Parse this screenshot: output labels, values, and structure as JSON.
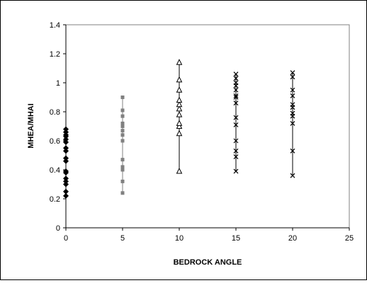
{
  "chart_data": {
    "type": "scatter",
    "xlabel": "BEDROCK ANGLE",
    "ylabel": "MHEA/MHAI",
    "xlim": [
      0,
      25
    ],
    "ylim": [
      0,
      1.4
    ],
    "xticks": [
      "0",
      "5",
      "10",
      "15",
      "20",
      "25"
    ],
    "yticks": [
      "0",
      "0.2",
      "0.4",
      "0.6",
      "0.8",
      "1",
      "1.2",
      "1.4"
    ],
    "grid": false,
    "legend": "none",
    "series": [
      {
        "marker": "diamond",
        "color": "#000000",
        "x": 0,
        "values": [
          0.22,
          0.25,
          0.3,
          0.32,
          0.34,
          0.38,
          0.39,
          0.46,
          0.48,
          0.53,
          0.55,
          0.59,
          0.61,
          0.63,
          0.64,
          0.66,
          0.68
        ]
      },
      {
        "marker": "square",
        "color": "#808080",
        "x": 5,
        "values": [
          0.24,
          0.32,
          0.4,
          0.42,
          0.47,
          0.6,
          0.64,
          0.67,
          0.7,
          0.72,
          0.77,
          0.81,
          0.9
        ]
      },
      {
        "marker": "triangle",
        "color": "#000000",
        "x": 10,
        "values": [
          0.39,
          0.65,
          0.7,
          0.72,
          0.78,
          0.82,
          0.85,
          0.88,
          0.95,
          1.02,
          1.14
        ]
      },
      {
        "marker": "x",
        "color": "#000000",
        "x": 15,
        "values": [
          0.39,
          0.49,
          0.53,
          0.6,
          0.71,
          0.76,
          0.86,
          0.9,
          0.91,
          0.95,
          0.98,
          1.0,
          1.03,
          1.06
        ]
      },
      {
        "marker": "x",
        "color": "#000000",
        "x": 20,
        "values": [
          0.36,
          0.53,
          0.72,
          0.77,
          0.79,
          0.83,
          0.85,
          0.91,
          0.95,
          1.04,
          1.07
        ]
      }
    ]
  }
}
